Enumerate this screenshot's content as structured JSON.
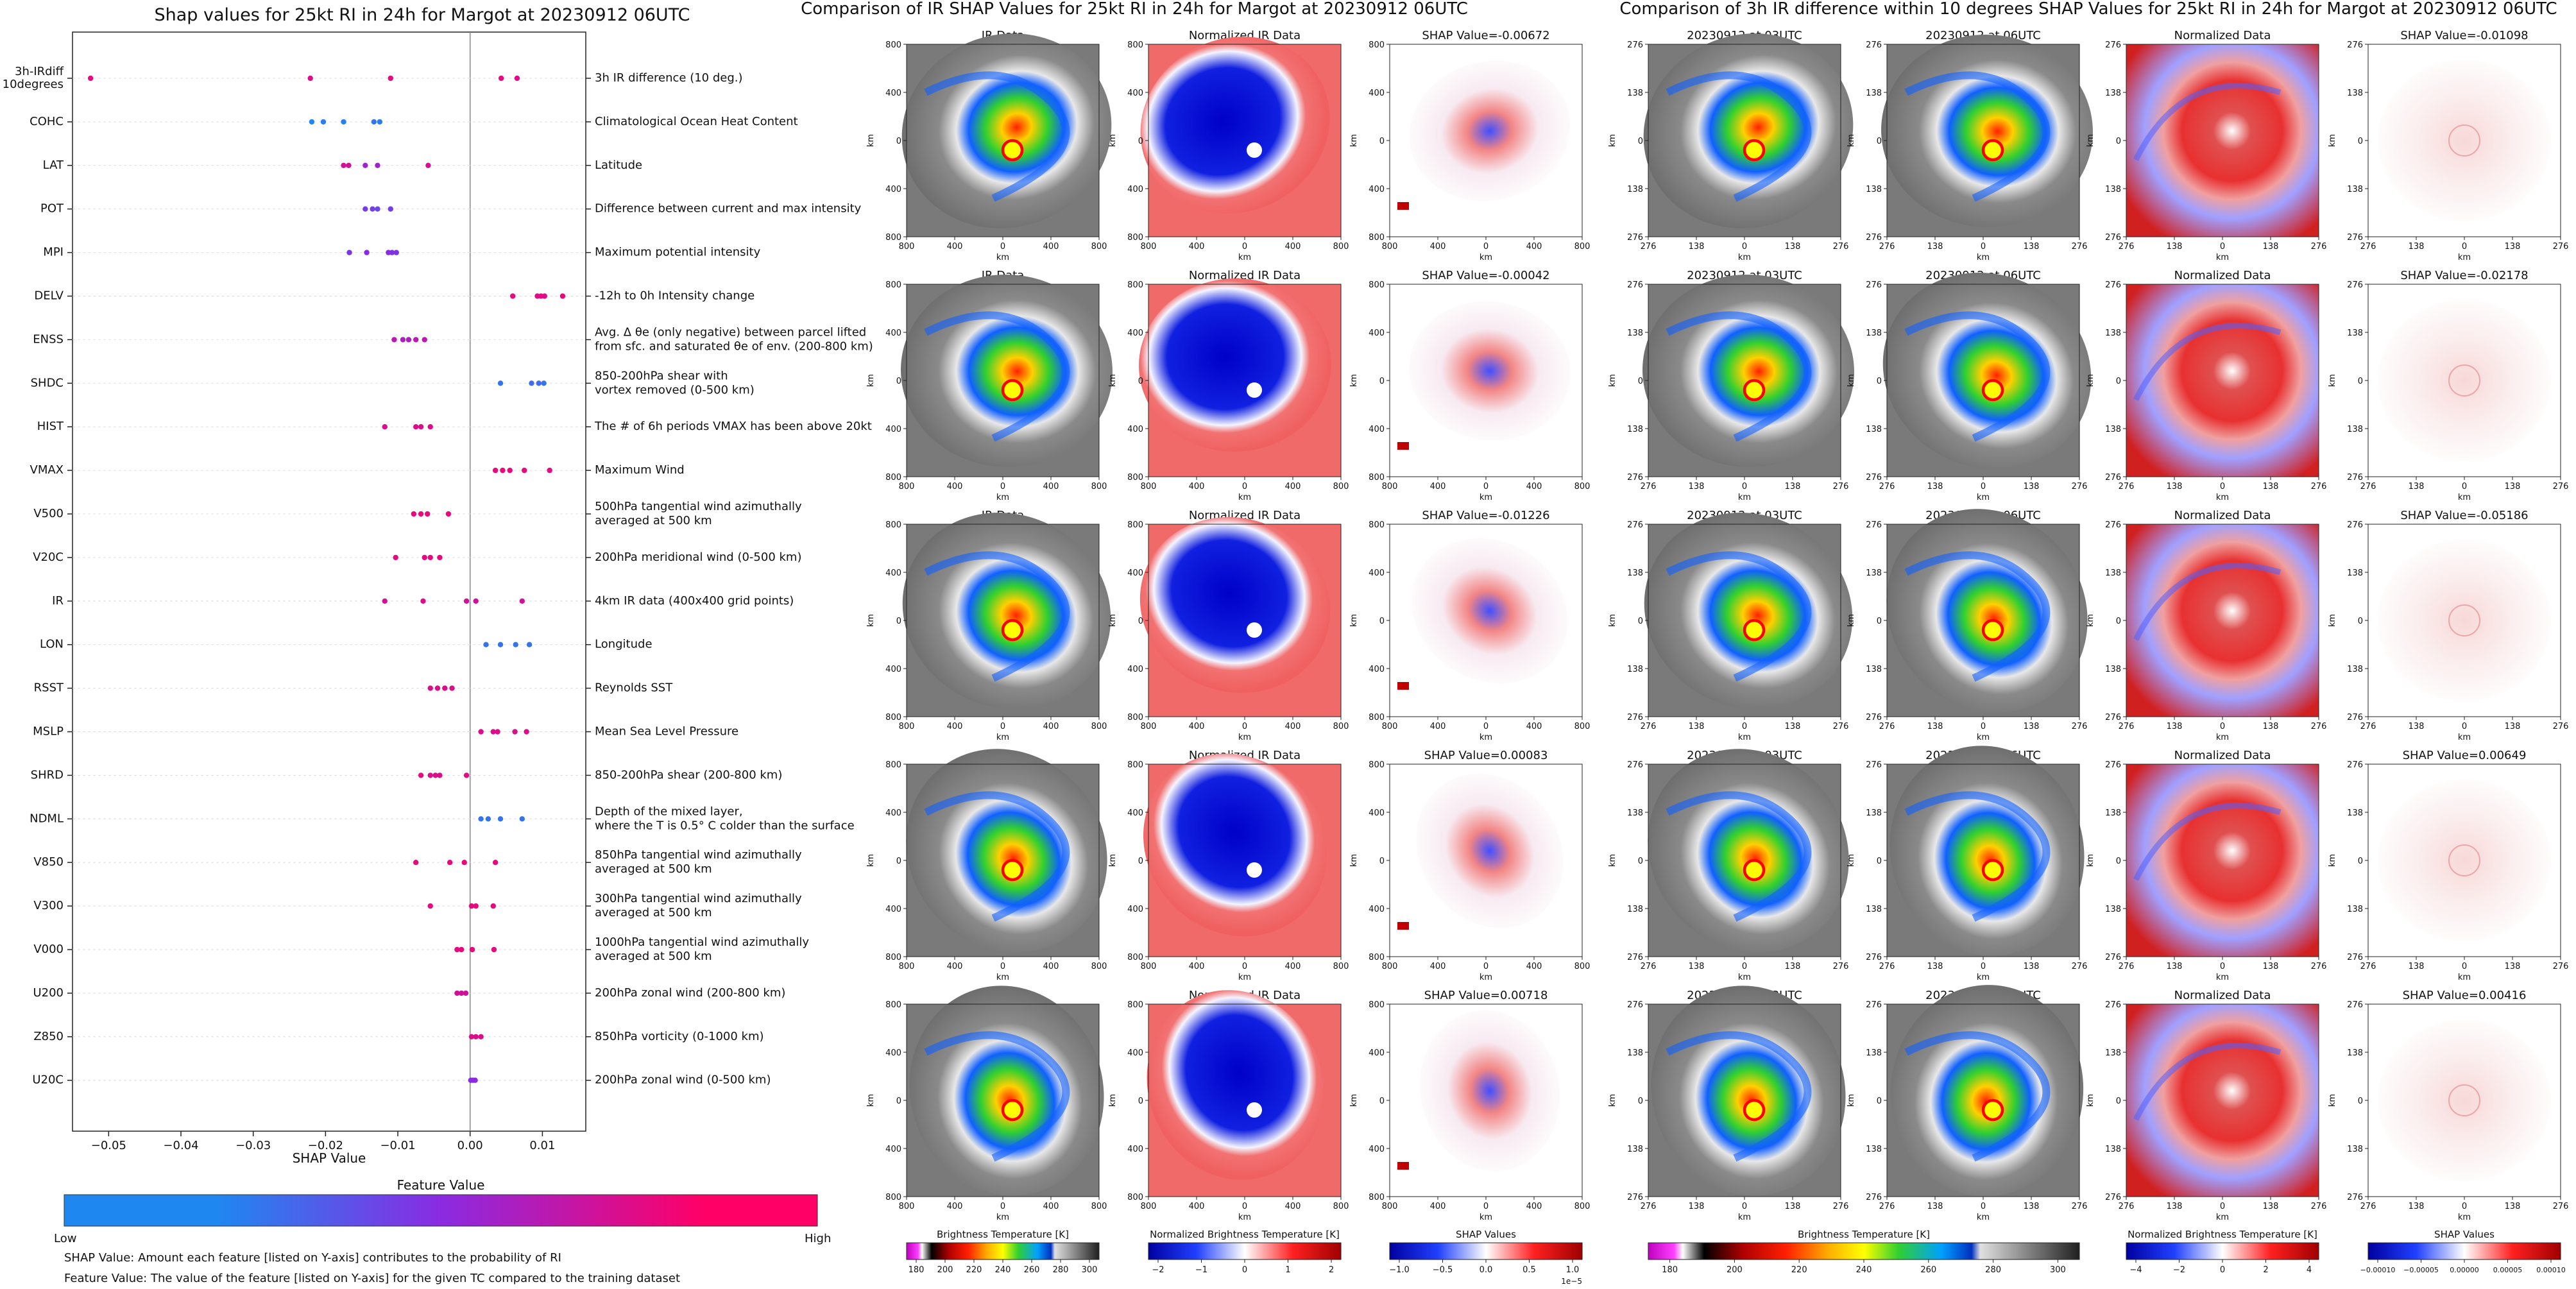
{
  "left_panel": {
    "title": "Shap values for 25kt RI in 24h for Margot at 20230912 06UTC",
    "xlabel": "SHAP Value",
    "xticks": [
      "−0.05",
      "−0.04",
      "−0.03",
      "−0.02",
      "−0.01",
      "0.00",
      "0.01"
    ],
    "colorbar_title": "Feature Value",
    "colorbar_low": "Low",
    "colorbar_high": "High",
    "note1": "SHAP Value: Amount each feature [listed on Y-axis] contributes to the probability of RI",
    "note2": "Feature Value: The value of the feature [listed on Y-axis] for the given TC compared to the training dataset",
    "colors": {
      "low": "#1e88f0",
      "mid": "#8a2be2",
      "high": "#ff0066"
    }
  },
  "chart_data": {
    "type": "scatter",
    "title": "Shap values for 25kt RI in 24h for Margot at 20230912 06UTC",
    "xlabel": "SHAP Value",
    "xlim": [
      -0.055,
      0.016
    ],
    "features": [
      {
        "name": "3h-IRdiff\n10degrees",
        "description": "3h IR difference (10 deg.)",
        "shap": [
          -0.0525,
          -0.0221,
          -0.011,
          0.0043,
          0.0065
        ],
        "fvals": [
          0.9,
          0.85,
          0.9,
          0.9,
          0.85
        ]
      },
      {
        "name": "COHC",
        "description": "Climatological Ocean Heat Content",
        "shap": [
          -0.0219,
          -0.0203,
          -0.0175,
          -0.0133,
          -0.0125
        ],
        "fvals": [
          0.0,
          0.05,
          0.05,
          0.1,
          0.05
        ]
      },
      {
        "name": "LAT",
        "description": "Latitude",
        "shap": [
          -0.0175,
          -0.0168,
          -0.0145,
          -0.0128,
          -0.0058
        ],
        "fvals": [
          0.8,
          0.8,
          0.6,
          0.6,
          0.8
        ]
      },
      {
        "name": "POT",
        "description": "Difference between current and max intensity",
        "shap": [
          -0.0145,
          -0.0135,
          -0.0128,
          -0.011
        ],
        "fvals": [
          0.4,
          0.4,
          0.35,
          0.4
        ]
      },
      {
        "name": "MPI",
        "description": "Maximum potential intensity",
        "shap": [
          -0.0167,
          -0.0143,
          -0.0113,
          -0.0108,
          -0.0102
        ],
        "fvals": [
          0.45,
          0.5,
          0.5,
          0.45,
          0.45
        ]
      },
      {
        "name": "DELV",
        "description": "-12h to 0h Intensity change",
        "shap": [
          0.0059,
          0.0093,
          0.0098,
          0.0103,
          0.0128
        ],
        "fvals": [
          0.9,
          0.85,
          0.9,
          0.85,
          0.9
        ]
      },
      {
        "name": "ENSS",
        "description": "Avg. Δ θe (only negative) between parcel lifted\nfrom sfc. and saturated θe of env. (200-800 km)",
        "shap": [
          -0.0105,
          -0.0093,
          -0.0085,
          -0.0075,
          -0.0063
        ],
        "fvals": [
          0.7,
          0.65,
          0.65,
          0.7,
          0.7
        ]
      },
      {
        "name": "SHDC",
        "description": "850-200hPa shear with\nvortex removed (0-500 km)",
        "shap": [
          0.0042,
          0.0085,
          0.0095,
          0.0102
        ],
        "fvals": [
          0.1,
          0.15,
          0.15,
          0.1
        ]
      },
      {
        "name": "HIST",
        "description": "The # of 6h periods VMAX has been above 20kt",
        "shap": [
          -0.0118,
          -0.0075,
          -0.0068,
          -0.0055
        ],
        "fvals": [
          0.85,
          0.85,
          0.85,
          0.85
        ]
      },
      {
        "name": "VMAX",
        "description": "Maximum Wind",
        "shap": [
          0.0035,
          0.0045,
          0.0055,
          0.0075,
          0.011
        ],
        "fvals": [
          0.9,
          0.9,
          0.9,
          0.9,
          0.9
        ]
      },
      {
        "name": "V500",
        "description": "500hPa tangential wind azimuthally\naveraged at 500 km",
        "shap": [
          -0.0078,
          -0.0068,
          -0.0059,
          -0.003
        ],
        "fvals": [
          0.9,
          0.9,
          0.9,
          0.9
        ]
      },
      {
        "name": "V20C",
        "description": "200hPa meridional wind (0-500 km)",
        "shap": [
          -0.0103,
          -0.0063,
          -0.0055,
          -0.0042
        ],
        "fvals": [
          0.9,
          0.9,
          0.9,
          0.9
        ]
      },
      {
        "name": "IR",
        "description": "4km IR data (400x400 grid points)",
        "shap": [
          -0.0118,
          -0.0065,
          -0.0005,
          0.0008,
          0.0072
        ],
        "fvals": [
          0.8,
          0.85,
          0.8,
          0.8,
          0.8
        ]
      },
      {
        "name": "LON",
        "description": "Longitude",
        "shap": [
          0.0022,
          0.0042,
          0.0063,
          0.0082
        ],
        "fvals": [
          0.1,
          0.1,
          0.1,
          0.1
        ]
      },
      {
        "name": "RSST",
        "description": "Reynolds SST",
        "shap": [
          -0.0055,
          -0.0045,
          -0.0035,
          -0.0025
        ],
        "fvals": [
          0.85,
          0.85,
          0.85,
          0.85
        ]
      },
      {
        "name": "MSLP",
        "description": "Mean Sea Level Pressure",
        "shap": [
          0.0015,
          0.0032,
          0.0038,
          0.0062,
          0.0078
        ],
        "fvals": [
          0.85,
          0.85,
          0.85,
          0.85,
          0.85
        ]
      },
      {
        "name": "SHRD",
        "description": "850-200hPa shear (200-800 km)",
        "shap": [
          -0.0068,
          -0.0055,
          -0.0048,
          -0.0042,
          -0.0005
        ],
        "fvals": [
          0.9,
          0.85,
          0.85,
          0.85,
          0.9
        ]
      },
      {
        "name": "NDML",
        "description": "Depth of the mixed layer,\nwhere the T is 0.5° C colder than the surface",
        "shap": [
          0.0015,
          0.0025,
          0.0042,
          0.0072
        ],
        "fvals": [
          0.1,
          0.1,
          0.1,
          0.1
        ]
      },
      {
        "name": "V850",
        "description": "850hPa tangential wind azimuthally\naveraged at 500 km",
        "shap": [
          -0.0075,
          -0.0028,
          -0.0008,
          0.0035
        ],
        "fvals": [
          0.9,
          0.9,
          0.9,
          0.9
        ]
      },
      {
        "name": "V300",
        "description": "300hPa tangential wind azimuthally\naveraged at 500 km",
        "shap": [
          -0.0055,
          0.0002,
          0.0008,
          0.0032
        ],
        "fvals": [
          0.9,
          0.9,
          0.9,
          0.9
        ]
      },
      {
        "name": "V000",
        "description": "1000hPa tangential wind azimuthally\naveraged at 500 km",
        "shap": [
          -0.0018,
          -0.0012,
          0.0003,
          0.0033
        ],
        "fvals": [
          0.9,
          0.9,
          0.9,
          0.9
        ]
      },
      {
        "name": "U200",
        "description": "200hPa zonal wind (200-800 km)",
        "shap": [
          -0.0018,
          -0.0012,
          -0.0006
        ],
        "fvals": [
          0.8,
          0.8,
          0.8
        ]
      },
      {
        "name": "Z850",
        "description": "850hPa vorticity (0-1000 km)",
        "shap": [
          0.0002,
          0.0008,
          0.0015
        ],
        "fvals": [
          0.85,
          0.85,
          0.85
        ]
      },
      {
        "name": "U20C",
        "description": "200hPa zonal wind (0-500 km)",
        "shap": [
          0.0001,
          0.0004,
          0.0007
        ],
        "fvals": [
          0.5,
          0.5,
          0.5
        ]
      }
    ]
  },
  "middle_panel": {
    "title": "Comparison of IR SHAP Values for 25kt RI in 24h for Margot at 20230912 06UTC",
    "col_titles": [
      "IR Data",
      "Normalized IR Data"
    ],
    "shap_titles": [
      "SHAP Value=-0.00672",
      "SHAP Value=-0.00042",
      "SHAP Value=-0.01226",
      "SHAP Value=0.00083",
      "SHAP Value=0.00718"
    ],
    "axis_label": "km",
    "ticks": [
      "800",
      "400",
      "0",
      "400",
      "800"
    ],
    "colorbars": [
      {
        "label": "Brightness Temperature [K]",
        "ticks": [
          "180",
          "200",
          "220",
          "240",
          "260",
          "280",
          "300"
        ]
      },
      {
        "label": "Normalized Brightness Temperature [K]",
        "ticks": [
          "−2",
          "−1",
          "0",
          "1",
          "2"
        ]
      },
      {
        "label": "SHAP Values",
        "ticks": [
          "−1.0",
          "−0.5",
          "0.0",
          "0.5",
          "1.0"
        ],
        "exponent": "1e−5"
      }
    ]
  },
  "right_panel": {
    "title": "Comparison of 3h IR difference within 10 degrees SHAP Values for 25kt RI in 24h for Margot at 20230912 06UTC",
    "col_titles": [
      "20230912 at 03UTC",
      "20230912 at 06UTC",
      "Normalized Data"
    ],
    "shap_titles": [
      "SHAP Value=-0.01098",
      "SHAP Value=-0.02178",
      "SHAP Value=-0.05186",
      "SHAP Value=0.00649",
      "SHAP Value=0.00416"
    ],
    "axis_label": "km",
    "ticks": [
      "276",
      "138",
      "0",
      "138",
      "276"
    ],
    "colorbars": [
      {
        "label": "Brightness Temperature [K]",
        "ticks": [
          "180",
          "200",
          "220",
          "240",
          "260",
          "280",
          "300"
        ]
      },
      {
        "label": "Normalized Brightness Temperature [K]",
        "ticks": [
          "−4",
          "−2",
          "0",
          "2",
          "4"
        ]
      },
      {
        "label": "SHAP Values",
        "ticks": [
          "−0.00010",
          "−0.00005",
          "0.00000",
          "0.00005",
          "0.00010"
        ]
      }
    ]
  }
}
